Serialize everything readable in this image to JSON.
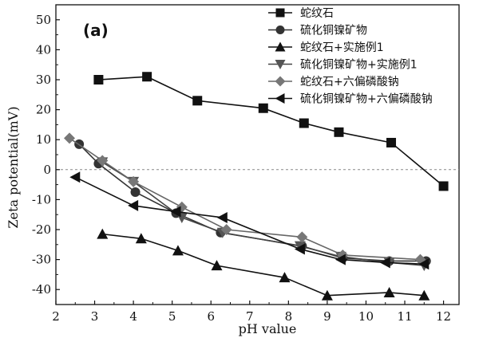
{
  "chart_data": {
    "type": "line",
    "panel_label": "(a)",
    "xlabel": "pH value",
    "ylabel": "Zeta potential(mV)",
    "xlim": [
      2,
      12.4
    ],
    "ylim": [
      -45,
      55
    ],
    "xticks": [
      2,
      3,
      4,
      5,
      6,
      7,
      8,
      9,
      10,
      11,
      12
    ],
    "yticks": [
      -40,
      -30,
      -20,
      -10,
      0,
      10,
      20,
      30,
      40,
      50
    ],
    "reference_line": 0,
    "legend_position": "top-right",
    "series": [
      {
        "name": "蛇纹石",
        "marker": "square",
        "x": [
          3.1,
          4.35,
          5.65,
          7.35,
          8.4,
          9.3,
          10.65,
          12.0
        ],
        "y": [
          30,
          31,
          23,
          20.5,
          15.5,
          12.5,
          9,
          -5.5
        ]
      },
      {
        "name": "硫化铜镍矿物",
        "marker": "circle",
        "x": [
          2.6,
          3.1,
          4.05,
          5.1,
          6.25,
          8.35,
          9.4,
          10.6,
          11.55
        ],
        "y": [
          8.5,
          2,
          -7.5,
          -14.5,
          -21,
          -25.5,
          -29.5,
          -30.5,
          -30.5
        ]
      },
      {
        "name": "蛇纹石+实施例1",
        "marker": "triangle-up",
        "x": [
          3.2,
          4.2,
          5.15,
          6.15,
          7.9,
          9.0,
          10.6,
          11.5
        ],
        "y": [
          -21.5,
          -23,
          -27,
          -32,
          -36,
          -42,
          -41,
          -42
        ]
      },
      {
        "name": "硫化铜镍矿物+实施例1",
        "marker": "triangle-down",
        "x": [
          3.2,
          4.0,
          5.25,
          6.3,
          8.3,
          9.35,
          10.6,
          11.5
        ],
        "y": [
          2.5,
          -4,
          -16,
          -21,
          -25.5,
          -29,
          -31,
          -32
        ]
      },
      {
        "name": "蛇纹石+六偏磷酸钠",
        "marker": "diamond",
        "x": [
          2.35,
          3.2,
          4.0,
          5.25,
          6.4,
          8.35,
          9.4,
          11.4
        ],
        "y": [
          10.5,
          3,
          -4,
          -12.5,
          -20,
          -22.5,
          -28.5,
          -30
        ]
      },
      {
        "name": "硫化铜镍矿物+六偏磷酸钠",
        "marker": "triangle-left",
        "x": [
          2.5,
          4.0,
          5.1,
          6.3,
          8.3,
          9.35,
          10.5,
          11.5
        ],
        "y": [
          -2.5,
          -12,
          -14,
          -16,
          -26.5,
          -30,
          -31,
          -31.5
        ]
      }
    ]
  }
}
